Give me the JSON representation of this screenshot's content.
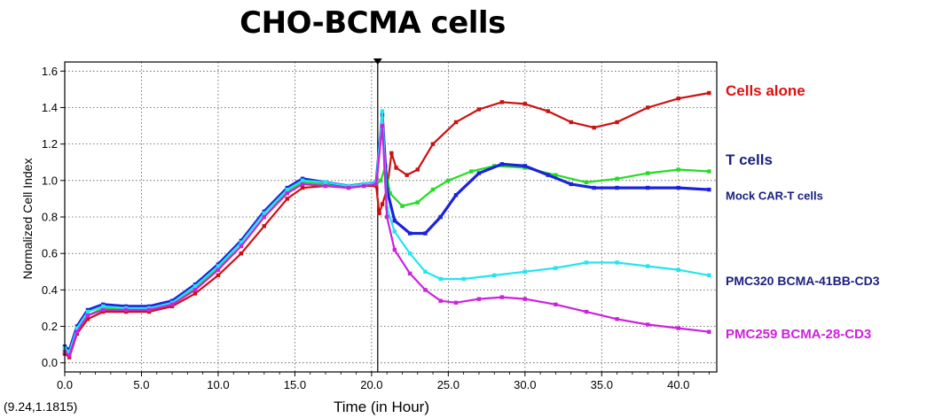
{
  "chart_data": {
    "type": "line",
    "title": "CHO-BCMA cells",
    "xlabel": "Time (in Hour)",
    "ylabel": "Normalized Cell Index",
    "xlim": [
      0,
      42.5
    ],
    "ylim": [
      -0.05,
      1.65
    ],
    "xticks": [
      "0.0",
      "5.0",
      "10.0",
      "15.0",
      "20.0",
      "25.0",
      "30.0",
      "35.0",
      "40.0"
    ],
    "yticks": [
      "0.0",
      "0.2",
      "0.4",
      "0.6",
      "0.8",
      "1.0",
      "1.2",
      "1.4",
      "1.6"
    ],
    "grid": true,
    "legend": "labels at right end of each series",
    "cursor_readout": "(9.24,1.1815)",
    "marker_line_x": 20.4,
    "series": [
      {
        "name": "Cells alone",
        "color": "#cc1111",
        "points": [
          [
            0,
            0.05
          ],
          [
            0.3,
            0.03
          ],
          [
            0.8,
            0.16
          ],
          [
            1.5,
            0.24
          ],
          [
            2.5,
            0.28
          ],
          [
            4,
            0.28
          ],
          [
            5.5,
            0.28
          ],
          [
            7,
            0.31
          ],
          [
            8.5,
            0.38
          ],
          [
            10,
            0.48
          ],
          [
            11.5,
            0.6
          ],
          [
            13,
            0.75
          ],
          [
            14.5,
            0.9
          ],
          [
            15.5,
            0.96
          ],
          [
            17,
            0.97
          ],
          [
            18.5,
            0.96
          ],
          [
            19.5,
            0.97
          ],
          [
            20.3,
            0.97
          ],
          [
            20.5,
            0.82
          ],
          [
            20.7,
            0.87
          ],
          [
            21.0,
            0.95
          ],
          [
            21.3,
            1.15
          ],
          [
            21.6,
            1.07
          ],
          [
            22.3,
            1.03
          ],
          [
            23,
            1.06
          ],
          [
            24,
            1.2
          ],
          [
            25.5,
            1.32
          ],
          [
            27,
            1.39
          ],
          [
            28.5,
            1.43
          ],
          [
            30,
            1.42
          ],
          [
            31.5,
            1.38
          ],
          [
            33,
            1.32
          ],
          [
            34.5,
            1.29
          ],
          [
            36,
            1.32
          ],
          [
            38,
            1.4
          ],
          [
            40,
            1.45
          ],
          [
            42,
            1.48
          ]
        ]
      },
      {
        "name": "T cells",
        "color": "#22dd22",
        "points": [
          [
            0,
            0.07
          ],
          [
            0.3,
            0.05
          ],
          [
            0.8,
            0.18
          ],
          [
            1.5,
            0.26
          ],
          [
            2.5,
            0.3
          ],
          [
            4,
            0.3
          ],
          [
            5.5,
            0.3
          ],
          [
            7,
            0.33
          ],
          [
            8.5,
            0.41
          ],
          [
            10,
            0.52
          ],
          [
            11.5,
            0.64
          ],
          [
            13,
            0.8
          ],
          [
            14.5,
            0.94
          ],
          [
            15.5,
            0.99
          ],
          [
            17,
            0.98
          ],
          [
            18.5,
            0.96
          ],
          [
            19.5,
            0.97
          ],
          [
            20.3,
            0.98
          ],
          [
            20.6,
            1.0
          ],
          [
            20.9,
            1.08
          ],
          [
            21.2,
            0.93
          ],
          [
            22,
            0.86
          ],
          [
            23,
            0.88
          ],
          [
            24,
            0.95
          ],
          [
            25,
            1.0
          ],
          [
            26.5,
            1.05
          ],
          [
            28,
            1.08
          ],
          [
            30,
            1.07
          ],
          [
            32,
            1.03
          ],
          [
            34,
            0.99
          ],
          [
            36,
            1.01
          ],
          [
            38,
            1.04
          ],
          [
            40,
            1.06
          ],
          [
            42,
            1.05
          ]
        ]
      },
      {
        "name": "Mock CAR-T cells",
        "color": "#1a22dd",
        "points": [
          [
            0,
            0.09
          ],
          [
            0.3,
            0.07
          ],
          [
            0.8,
            0.2
          ],
          [
            1.5,
            0.29
          ],
          [
            2.5,
            0.32
          ],
          [
            4,
            0.31
          ],
          [
            5.5,
            0.31
          ],
          [
            7,
            0.34
          ],
          [
            8.5,
            0.43
          ],
          [
            10,
            0.54
          ],
          [
            11.5,
            0.67
          ],
          [
            13,
            0.83
          ],
          [
            14.5,
            0.96
          ],
          [
            15.5,
            1.01
          ],
          [
            17,
            0.99
          ],
          [
            18.5,
            0.97
          ],
          [
            19.5,
            0.98
          ],
          [
            20.3,
            0.99
          ],
          [
            20.7,
            1.36
          ],
          [
            21.0,
            0.95
          ],
          [
            21.5,
            0.78
          ],
          [
            22.5,
            0.71
          ],
          [
            23.5,
            0.71
          ],
          [
            24.5,
            0.8
          ],
          [
            25.5,
            0.92
          ],
          [
            27,
            1.04
          ],
          [
            28.5,
            1.09
          ],
          [
            30,
            1.08
          ],
          [
            31.5,
            1.03
          ],
          [
            33,
            0.98
          ],
          [
            34.5,
            0.96
          ],
          [
            36,
            0.96
          ],
          [
            38,
            0.96
          ],
          [
            40,
            0.96
          ],
          [
            42,
            0.95
          ]
        ]
      },
      {
        "name": "PMC320 BCMA-41BB-CD3",
        "color": "#22e5ee",
        "points": [
          [
            0,
            0.08
          ],
          [
            0.3,
            0.06
          ],
          [
            0.8,
            0.19
          ],
          [
            1.5,
            0.28
          ],
          [
            2.5,
            0.31
          ],
          [
            4,
            0.3
          ],
          [
            5.5,
            0.3
          ],
          [
            7,
            0.33
          ],
          [
            8.5,
            0.42
          ],
          [
            10,
            0.53
          ],
          [
            11.5,
            0.66
          ],
          [
            13,
            0.82
          ],
          [
            14.5,
            0.95
          ],
          [
            15.5,
            1.0
          ],
          [
            17,
            0.99
          ],
          [
            18.5,
            0.97
          ],
          [
            19.5,
            0.98
          ],
          [
            20.3,
            0.99
          ],
          [
            20.7,
            1.38
          ],
          [
            21.0,
            0.85
          ],
          [
            21.5,
            0.72
          ],
          [
            22.5,
            0.6
          ],
          [
            23.5,
            0.5
          ],
          [
            24.5,
            0.46
          ],
          [
            26,
            0.46
          ],
          [
            28,
            0.48
          ],
          [
            30,
            0.5
          ],
          [
            32,
            0.52
          ],
          [
            34,
            0.55
          ],
          [
            36,
            0.55
          ],
          [
            38,
            0.53
          ],
          [
            40,
            0.51
          ],
          [
            42,
            0.48
          ]
        ]
      },
      {
        "name": "PMC259 BCMA-28-CD3",
        "color": "#cc22dd",
        "points": [
          [
            0,
            0.06
          ],
          [
            0.3,
            0.04
          ],
          [
            0.8,
            0.17
          ],
          [
            1.5,
            0.26
          ],
          [
            2.5,
            0.29
          ],
          [
            4,
            0.29
          ],
          [
            5.5,
            0.29
          ],
          [
            7,
            0.32
          ],
          [
            8.5,
            0.4
          ],
          [
            10,
            0.51
          ],
          [
            11.5,
            0.64
          ],
          [
            13,
            0.8
          ],
          [
            14.5,
            0.93
          ],
          [
            15.5,
            0.98
          ],
          [
            17,
            0.97
          ],
          [
            18.5,
            0.96
          ],
          [
            19.5,
            0.97
          ],
          [
            20.3,
            0.98
          ],
          [
            20.7,
            1.3
          ],
          [
            21.0,
            0.8
          ],
          [
            21.5,
            0.62
          ],
          [
            22.5,
            0.49
          ],
          [
            23.5,
            0.4
          ],
          [
            24.5,
            0.34
          ],
          [
            25.5,
            0.33
          ],
          [
            27,
            0.35
          ],
          [
            28.5,
            0.36
          ],
          [
            30,
            0.35
          ],
          [
            32,
            0.32
          ],
          [
            34,
            0.28
          ],
          [
            36,
            0.24
          ],
          [
            38,
            0.21
          ],
          [
            40,
            0.19
          ],
          [
            42,
            0.17
          ]
        ]
      }
    ],
    "labels": [
      {
        "text": "Cells alone",
        "color": "#e01010",
        "size": 17,
        "y": 1.49
      },
      {
        "text": "T cells",
        "color": "#1a1f80",
        "size": 17,
        "y": 1.11
      },
      {
        "text": "Mock CAR-T cells",
        "color": "#1a1f80",
        "size": 13,
        "y": 0.92
      },
      {
        "text": "PMC320 BCMA-41BB-CD3",
        "color": "#1a1f80",
        "size": 14,
        "y": 0.45
      },
      {
        "text": "PMC259 BCMA-28-CD3",
        "color": "#cc22dd",
        "size": 15,
        "y": 0.16
      }
    ]
  }
}
